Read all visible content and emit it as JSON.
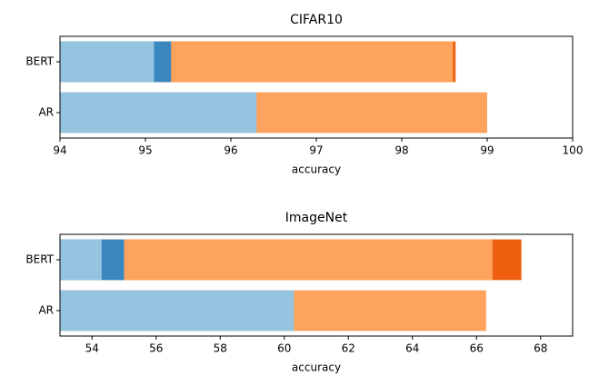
{
  "chart_data": [
    {
      "type": "barh",
      "title": "CIFAR10",
      "xlabel": "accuracy",
      "categories": [
        "BERT",
        "AR"
      ],
      "series": [
        {
          "color": "#ee6010",
          "values": [
            98.63,
            null
          ]
        },
        {
          "color": "#fda35d",
          "values": [
            98.6,
            99.0
          ]
        },
        {
          "color": "#3a87c0",
          "values": [
            95.3,
            null
          ]
        },
        {
          "color": "#94c4df",
          "values": [
            95.1,
            96.3
          ]
        }
      ],
      "xlim": [
        94,
        100
      ],
      "xticks": [
        94,
        95,
        96,
        97,
        98,
        99,
        100
      ]
    },
    {
      "type": "barh",
      "title": "ImageNet",
      "xlabel": "accuracy",
      "categories": [
        "BERT",
        "AR"
      ],
      "series": [
        {
          "color": "#ee6010",
          "values": [
            67.4,
            null
          ]
        },
        {
          "color": "#fda35d",
          "values": [
            66.5,
            66.3
          ]
        },
        {
          "color": "#3a87c0",
          "values": [
            55.0,
            null
          ]
        },
        {
          "color": "#94c4df",
          "values": [
            54.3,
            60.3
          ]
        }
      ],
      "xlim": [
        53,
        69
      ],
      "xticks": [
        54,
        56,
        58,
        60,
        62,
        64,
        66,
        68
      ]
    }
  ]
}
